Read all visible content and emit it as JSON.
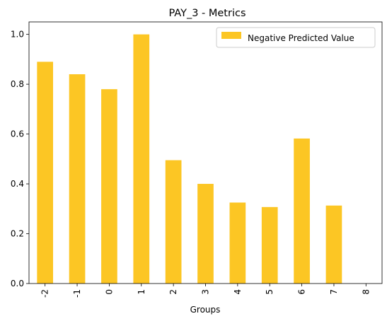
{
  "chart_data": {
    "type": "bar",
    "title": "PAY_3 - Metrics",
    "xlabel": "Groups",
    "ylabel": "",
    "categories": [
      "-2",
      "-1",
      "0",
      "1",
      "2",
      "3",
      "4",
      "5",
      "6",
      "7",
      "8"
    ],
    "series": [
      {
        "name": "Negative Predicted Value",
        "color": "#fcc624",
        "values": [
          0.89,
          0.84,
          0.78,
          1.0,
          0.495,
          0.4,
          0.325,
          0.307,
          0.582,
          0.313,
          0.0
        ]
      }
    ],
    "yticks": [
      "0.0",
      "0.2",
      "0.4",
      "0.6",
      "0.8",
      "1.0"
    ],
    "ylim": [
      0,
      1.05
    ],
    "grid": false,
    "legend_position": "top-right"
  }
}
